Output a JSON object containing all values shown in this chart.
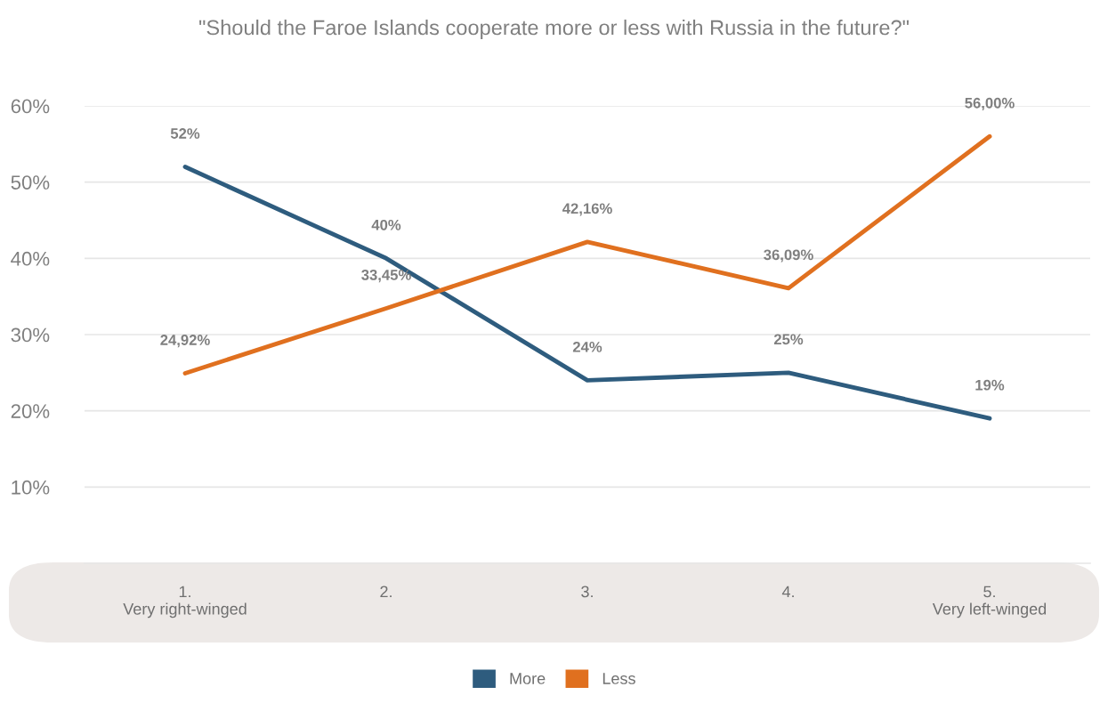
{
  "chart_data": {
    "type": "line",
    "title": "\"Should the Faroe Islands cooperate more or less with Russia in the future?\"",
    "categories": [
      "1.\nVery right-winged",
      "2.",
      "3.",
      "4.",
      "5.\nVery left-winged"
    ],
    "series": [
      {
        "name": "More",
        "color": "#2e5c7e",
        "values": [
          52,
          40,
          24,
          25,
          19
        ],
        "value_labels": [
          "52%",
          "40%",
          "24%",
          "25%",
          "19%"
        ]
      },
      {
        "name": "Less",
        "color": "#e0701f",
        "values": [
          24.92,
          33.45,
          42.16,
          36.09,
          56.0
        ],
        "value_labels": [
          "24,92%",
          "33,45%",
          "42,16%",
          "36,09%",
          "56,00%"
        ]
      }
    ],
    "ylim": [
      0,
      60
    ],
    "yticks": [
      {
        "value": 10,
        "label": "10%"
      },
      {
        "value": 20,
        "label": "20%"
      },
      {
        "value": 30,
        "label": "30%"
      },
      {
        "value": 40,
        "label": "40%"
      },
      {
        "value": 50,
        "label": "50%"
      },
      {
        "value": 60,
        "label": "60%"
      }
    ],
    "grid": "y",
    "legend": "bottom",
    "marker": "none",
    "line_style": "solid"
  }
}
